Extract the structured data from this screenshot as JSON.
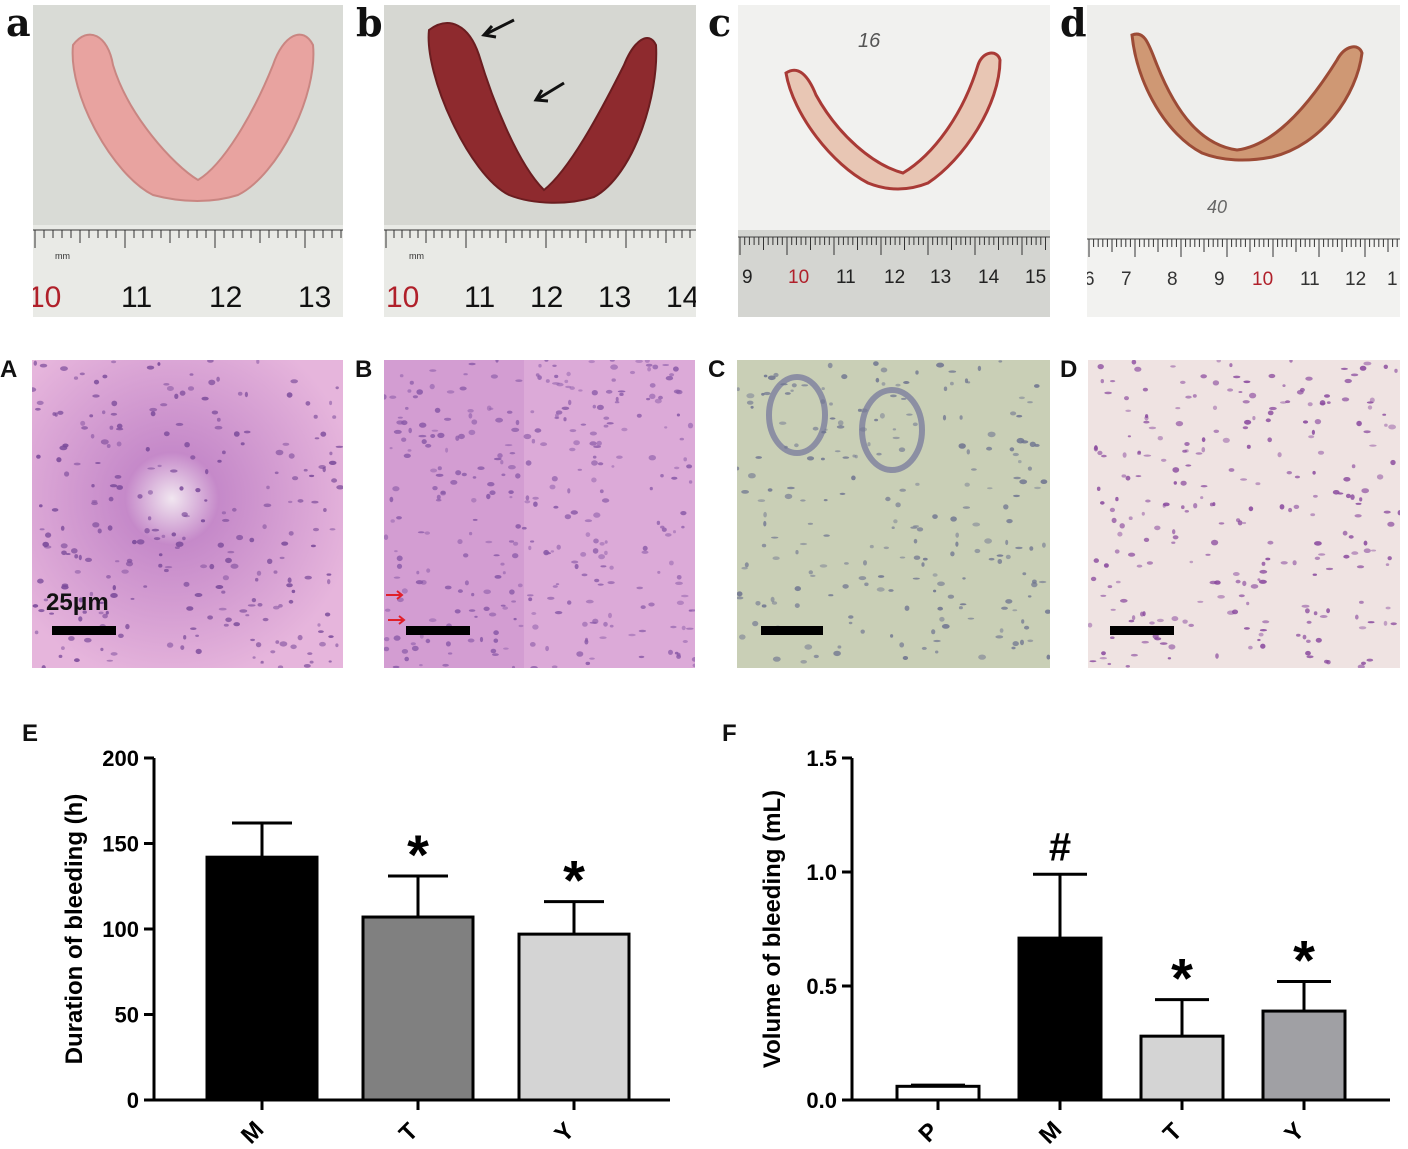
{
  "panels": {
    "photos": [
      {
        "letter": "a",
        "handwritten": "",
        "ruler": [
          "10",
          "11",
          "12",
          "13"
        ]
      },
      {
        "letter": "b",
        "handwritten": "",
        "ruler": [
          "10",
          "11",
          "12",
          "13",
          "14"
        ]
      },
      {
        "letter": "c",
        "handwritten": "16",
        "ruler": [
          "9",
          "10",
          "11",
          "12",
          "13",
          "14",
          "15"
        ]
      },
      {
        "letter": "d",
        "handwritten": "40",
        "ruler": [
          "6",
          "7",
          "8",
          "9",
          "10",
          "11",
          "12",
          "1"
        ]
      }
    ],
    "ruler_unit": "mm",
    "histology": [
      {
        "letter": "A",
        "scale_label": "25μm"
      },
      {
        "letter": "B",
        "scale_label": ""
      },
      {
        "letter": "C",
        "scale_label": ""
      },
      {
        "letter": "D",
        "scale_label": ""
      }
    ]
  },
  "colors": {
    "tissue_pink": "#e8a3a0",
    "blood_red": "#8e2a2e",
    "ruler_red": "#b0202a",
    "he_pink": "#dcaad8",
    "he_gray": "#c9cfb6",
    "bar_black": "#000000",
    "bar_dark_gray": "#808080",
    "bar_light_gray": "#d4d4d4",
    "bar_mid_gray": "#a0a0a4"
  },
  "chart_data": [
    {
      "panel": "E",
      "type": "bar",
      "categories": [
        "M",
        "T",
        "Y"
      ],
      "values": [
        142,
        107,
        97
      ],
      "errors": [
        20,
        24,
        19
      ],
      "annotations": [
        "",
        "*",
        "*"
      ],
      "colors": [
        "#000000",
        "#808080",
        "#d4d4d4"
      ],
      "ylabel": "Duration of bleeding (h)",
      "ylim": [
        0,
        200
      ],
      "yticks": [
        "0",
        "50",
        "100",
        "150",
        "200"
      ],
      "grid": false
    },
    {
      "panel": "F",
      "type": "bar",
      "categories": [
        "P",
        "M",
        "T",
        "Y"
      ],
      "values": [
        0.06,
        0.71,
        0.28,
        0.39
      ],
      "errors": [
        0.005,
        0.28,
        0.16,
        0.13
      ],
      "annotations": [
        "",
        "#",
        "*",
        "*"
      ],
      "colors": [
        "#ffffff",
        "#000000",
        "#d4d4d4",
        "#a0a0a4"
      ],
      "ylabel": "Volume of bleeding (mL)",
      "ylim": [
        0,
        1.5
      ],
      "yticks": [
        "0.0",
        "0.5",
        "1.0",
        "1.5"
      ],
      "grid": false
    }
  ]
}
